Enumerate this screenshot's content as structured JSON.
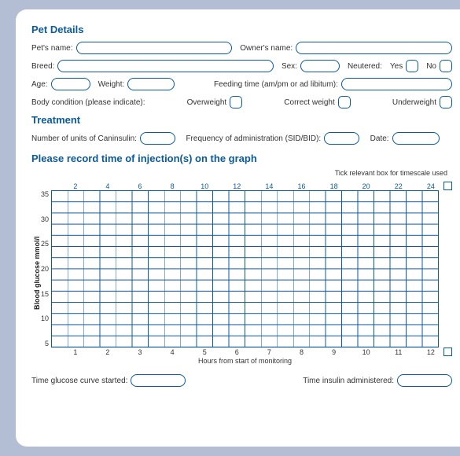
{
  "pet": {
    "title": "Pet Details",
    "name_label": "Pet's name:",
    "owner_label": "Owner's name:",
    "breed_label": "Breed:",
    "sex_label": "Sex:",
    "neutered_label": "Neutered:",
    "yes": "Yes",
    "no": "No",
    "age_label": "Age:",
    "weight_label": "Weight:",
    "feeding_label": "Feeding time (am/pm or ad libitum):",
    "body_cond_label": "Body condition (please indicate):",
    "overweight": "Overweight",
    "correct": "Correct weight",
    "underweight": "Underweight"
  },
  "treat": {
    "title": "Treatment",
    "units_label": "Number of units of Caninsulin:",
    "freq_label": "Frequency of administration (SID/BID):",
    "date_label": "Date:"
  },
  "graph": {
    "title": "Please record time of injection(s) on the graph",
    "tick_note": "Tick relevant box for timescale used",
    "y_label": "Blood glucose mmol/l",
    "y_ticks": [
      "35",
      "30",
      "25",
      "20",
      "15",
      "10",
      "5"
    ],
    "x_top_even": [
      "2",
      "4",
      "6",
      "8",
      "10",
      "12",
      "14",
      "16",
      "18",
      "20",
      "22",
      "24"
    ],
    "x_bot": [
      "1",
      "2",
      "3",
      "4",
      "5",
      "6",
      "7",
      "8",
      "9",
      "10",
      "11",
      "12"
    ],
    "x_label": "Hours from start of monitoring"
  },
  "foot": {
    "glucose_started": "Time glucose curve started:",
    "insulin_admin": "Time insulin administered:"
  },
  "colors": {
    "blue": "#0a5a9c",
    "page_bg": "#b3bdd3",
    "card_bg": "#ffffff"
  }
}
